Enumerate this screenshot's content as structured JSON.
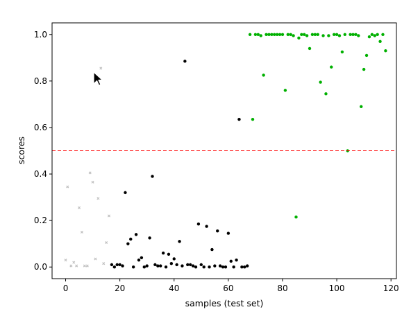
{
  "chart_data": {
    "type": "scatter",
    "title": "",
    "xlabel": "samples (test set)",
    "ylabel": "scores",
    "xlim": [
      -5,
      122
    ],
    "ylim": [
      -0.05,
      1.05
    ],
    "xticks": [
      0,
      20,
      40,
      60,
      80,
      100,
      120
    ],
    "yticks": [
      0.0,
      0.2,
      0.4,
      0.6,
      0.8,
      1.0
    ],
    "xtick_labels": [
      "0",
      "20",
      "40",
      "60",
      "80",
      "100",
      "120"
    ],
    "ytick_labels": [
      "0.0",
      "0.2",
      "0.4",
      "0.6",
      "0.8",
      "1.0"
    ],
    "grid": false,
    "legend": "none",
    "threshold": {
      "y": 0.5,
      "color": "#ff0000",
      "style": "dashed"
    },
    "series": [
      {
        "color": "#c0c0c0",
        "marker": "x",
        "points": [
          [
            0,
            0.03
          ],
          [
            0.7,
            0.345
          ],
          [
            2,
            0.005
          ],
          [
            3,
            0.02
          ],
          [
            4,
            0.005
          ],
          [
            5,
            0.255
          ],
          [
            6,
            0.15
          ],
          [
            7,
            0.005
          ],
          [
            8,
            0.005
          ],
          [
            9,
            0.405
          ],
          [
            10,
            0.365
          ],
          [
            11,
            0.035
          ],
          [
            12,
            0.295
          ],
          [
            13,
            0.855
          ],
          [
            14,
            0.015
          ],
          [
            15,
            0.105
          ],
          [
            16,
            0.22
          ]
        ]
      },
      {
        "color": "#000000",
        "marker": "o",
        "points": [
          [
            17,
            0.01
          ],
          [
            18,
            0.0
          ],
          [
            19,
            0.01
          ],
          [
            20,
            0.01
          ],
          [
            21,
            0.005
          ],
          [
            22,
            0.32
          ],
          [
            23,
            0.1
          ],
          [
            24,
            0.12
          ],
          [
            25,
            0.0
          ],
          [
            26,
            0.14
          ],
          [
            27,
            0.03
          ],
          [
            28,
            0.04
          ],
          [
            29,
            0.0
          ],
          [
            30,
            0.005
          ],
          [
            31,
            0.125
          ],
          [
            32,
            0.39
          ],
          [
            33,
            0.01
          ],
          [
            34,
            0.005
          ],
          [
            35,
            0.005
          ],
          [
            36,
            0.06
          ],
          [
            37,
            0.0
          ],
          [
            38,
            0.055
          ],
          [
            39,
            0.015
          ],
          [
            40,
            0.035
          ],
          [
            41,
            0.01
          ],
          [
            42,
            0.11
          ],
          [
            43,
            0.005
          ],
          [
            44,
            0.885
          ],
          [
            45,
            0.01
          ],
          [
            46,
            0.01
          ],
          [
            47,
            0.005
          ],
          [
            48,
            0.0
          ],
          [
            49,
            0.185
          ],
          [
            50,
            0.01
          ],
          [
            51,
            0.0
          ],
          [
            52,
            0.175
          ],
          [
            53,
            0.0
          ],
          [
            54,
            0.075
          ],
          [
            55,
            0.005
          ],
          [
            56,
            0.155
          ],
          [
            57,
            0.005
          ],
          [
            58,
            0.0
          ],
          [
            59,
            0.0
          ],
          [
            60,
            0.145
          ],
          [
            61,
            0.025
          ],
          [
            62,
            0.0
          ],
          [
            63,
            0.03
          ],
          [
            64,
            0.635
          ],
          [
            65,
            0.0
          ],
          [
            66,
            0.0
          ],
          [
            67,
            0.005
          ]
        ]
      },
      {
        "color": "#00b000",
        "marker": "o",
        "points": [
          [
            68,
            1.0
          ],
          [
            69,
            0.635
          ],
          [
            70,
            1.0
          ],
          [
            71,
            1.0
          ],
          [
            72,
            0.995
          ],
          [
            73,
            0.825
          ],
          [
            74,
            1.0
          ],
          [
            75,
            1.0
          ],
          [
            76,
            1.0
          ],
          [
            77,
            1.0
          ],
          [
            78,
            1.0
          ],
          [
            79,
            1.0
          ],
          [
            80,
            1.0
          ],
          [
            81,
            0.76
          ],
          [
            82,
            1.0
          ],
          [
            83,
            1.0
          ],
          [
            84,
            0.995
          ],
          [
            85,
            0.215
          ],
          [
            86,
            0.985
          ],
          [
            87,
            1.0
          ],
          [
            88,
            1.0
          ],
          [
            89,
            0.995
          ],
          [
            90,
            0.94
          ],
          [
            91,
            1.0
          ],
          [
            92,
            1.0
          ],
          [
            93,
            1.0
          ],
          [
            94,
            0.795
          ],
          [
            95,
            0.995
          ],
          [
            96,
            0.745
          ],
          [
            97,
            0.995
          ],
          [
            98,
            0.86
          ],
          [
            99,
            1.0
          ],
          [
            100,
            1.0
          ],
          [
            101,
            0.995
          ],
          [
            102,
            0.925
          ],
          [
            103,
            1.0
          ],
          [
            104,
            0.5
          ],
          [
            105,
            1.0
          ],
          [
            106,
            1.0
          ],
          [
            107,
            1.0
          ],
          [
            108,
            0.995
          ],
          [
            109,
            0.69
          ],
          [
            110,
            0.85
          ],
          [
            111,
            0.91
          ],
          [
            112,
            0.99
          ],
          [
            113,
            1.0
          ],
          [
            114,
            0.995
          ],
          [
            115,
            1.0
          ],
          [
            116,
            0.97
          ],
          [
            117,
            1.0
          ],
          [
            118,
            0.93
          ]
        ]
      }
    ]
  },
  "cursor": {
    "icon": "mouse-pointer-icon",
    "color": "#000000"
  }
}
